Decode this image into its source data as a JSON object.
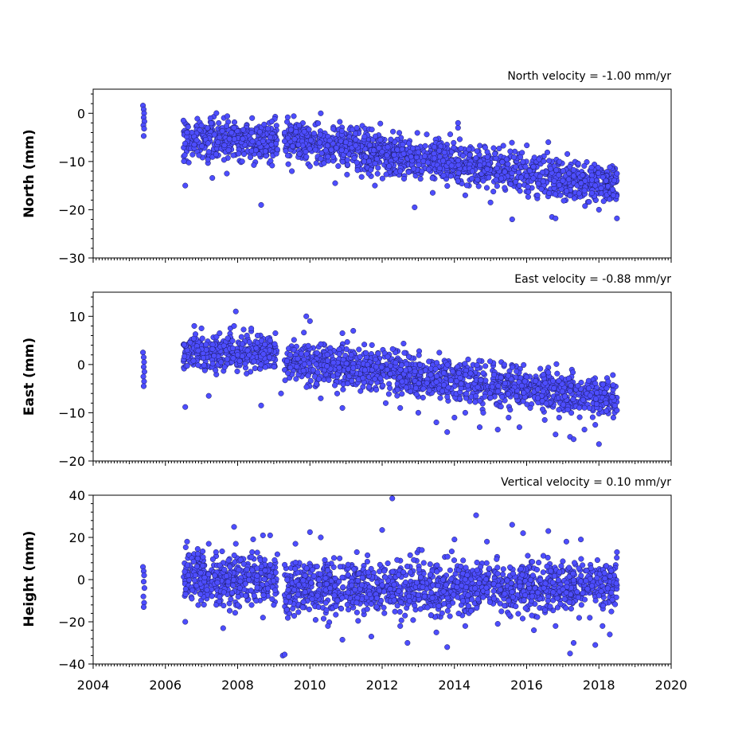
{
  "chart_data": [
    {
      "type": "scatter",
      "title": "North velocity = -1.00 mm/yr",
      "ylabel": "North (mm)",
      "xlim": [
        2004,
        2020
      ],
      "ylim": [
        -30,
        5
      ],
      "yticks": [
        0,
        -10,
        -20,
        -30
      ],
      "ytick_labels": [
        "0",
        "−10",
        "−20",
        "−30"
      ],
      "x_tick_labels_visible": false,
      "series": [
        {
          "points": [
            [
              2005.38,
              1.6
            ],
            [
              2005.4,
              0.8
            ],
            [
              2005.41,
              0.0
            ],
            [
              2005.4,
              -0.9
            ],
            [
              2005.42,
              -1.7
            ],
            [
              2005.39,
              -2.5
            ],
            [
              2005.41,
              -3.2
            ],
            [
              2005.4,
              -4.7
            ],
            [
              2006.5,
              -1.5
            ],
            [
              2006.55,
              -15.0
            ],
            [
              2006.6,
              -4.0
            ],
            [
              2006.8,
              -6.5
            ],
            [
              2007.0,
              -2.5
            ],
            [
              2007.2,
              -8.0
            ],
            [
              2007.3,
              -13.4
            ],
            [
              2007.5,
              -5.0
            ],
            [
              2007.7,
              -12.5
            ],
            [
              2007.9,
              -3.0
            ],
            [
              2008.4,
              -1.0
            ],
            [
              2008.6,
              -8.5
            ],
            [
              2008.65,
              -19.0
            ],
            [
              2008.9,
              -5.0
            ],
            [
              2009.1,
              -7.5
            ],
            [
              2009.3,
              -4.0
            ],
            [
              2009.5,
              -12.0
            ],
            [
              2009.7,
              -2.5
            ],
            [
              2010.0,
              -11.0
            ],
            [
              2010.3,
              0.0
            ],
            [
              2010.5,
              -9.0
            ],
            [
              2010.7,
              -14.5
            ],
            [
              2011.0,
              -6.0
            ],
            [
              2011.3,
              -3.0
            ],
            [
              2011.5,
              -10.0
            ],
            [
              2011.8,
              -15.0
            ],
            [
              2012.0,
              -8.0
            ],
            [
              2012.3,
              -3.8
            ],
            [
              2012.5,
              -12.0
            ],
            [
              2012.8,
              -9.0
            ],
            [
              2012.9,
              -19.5
            ],
            [
              2013.1,
              -12.0
            ],
            [
              2013.4,
              -16.5
            ],
            [
              2013.6,
              -9.0
            ],
            [
              2013.9,
              -13.0
            ],
            [
              2014.1,
              -2.0
            ],
            [
              2014.1,
              -3.0
            ],
            [
              2014.3,
              -17.0
            ],
            [
              2014.5,
              -12.0
            ],
            [
              2014.8,
              -14.0
            ],
            [
              2015.0,
              -18.5
            ],
            [
              2015.3,
              -13.5
            ],
            [
              2015.6,
              -22.0
            ],
            [
              2015.8,
              -15.0
            ],
            [
              2016.0,
              -13.0
            ],
            [
              2016.3,
              -17.0
            ],
            [
              2016.6,
              -6.0
            ],
            [
              2016.7,
              -21.5
            ],
            [
              2016.8,
              -21.8
            ],
            [
              2017.0,
              -14.0
            ],
            [
              2017.3,
              -13.0
            ],
            [
              2017.6,
              -16.0
            ],
            [
              2017.9,
              -15.0
            ],
            [
              2018.0,
              -20.0
            ],
            [
              2018.2,
              -14.0
            ],
            [
              2018.4,
              -17.0
            ],
            [
              2018.5,
              -21.8
            ],
            [
              2018.5,
              -12.5
            ]
          ],
          "trend_segments": [
            {
              "x": [
                2006.5,
                2009.1
              ],
              "y_center": -5.5,
              "spread": 3.0
            },
            {
              "x": [
                2009.3,
                2018.5
              ],
              "y_center_start": -5.5,
              "y_center_end": -15.0,
              "spread": 3.0
            }
          ]
        }
      ]
    },
    {
      "type": "scatter",
      "title": "East velocity = -0.88 mm/yr",
      "ylabel": "East (mm)",
      "xlim": [
        2004,
        2020
      ],
      "ylim": [
        -20,
        15
      ],
      "yticks": [
        10,
        0,
        -10,
        -20
      ],
      "ytick_labels": [
        "10",
        "0",
        "−10",
        "−20"
      ],
      "x_tick_labels_visible": false,
      "series": [
        {
          "points": [
            [
              2005.38,
              2.5
            ],
            [
              2005.4,
              1.5
            ],
            [
              2005.41,
              0.5
            ],
            [
              2005.4,
              -0.5
            ],
            [
              2005.42,
              -1.5
            ],
            [
              2005.39,
              -2.5
            ],
            [
              2005.41,
              -3.5
            ],
            [
              2005.4,
              -4.5
            ],
            [
              2006.55,
              -8.8
            ],
            [
              2006.8,
              8.0
            ],
            [
              2007.0,
              7.5
            ],
            [
              2007.2,
              -6.5
            ],
            [
              2007.5,
              6.5
            ],
            [
              2007.8,
              7.5
            ],
            [
              2007.95,
              11.0
            ],
            [
              2007.9,
              8.0
            ],
            [
              2008.55,
              6.0
            ],
            [
              2008.65,
              -8.5
            ],
            [
              2008.9,
              5.0
            ],
            [
              2009.2,
              -6.0
            ],
            [
              2009.9,
              10.0
            ],
            [
              2010.0,
              9.0
            ],
            [
              2010.3,
              -7.0
            ],
            [
              2010.9,
              6.5
            ],
            [
              2010.9,
              -9.0
            ],
            [
              2011.2,
              7.0
            ],
            [
              2011.4,
              -5.5
            ],
            [
              2011.8,
              -3.0
            ],
            [
              2012.1,
              -8.0
            ],
            [
              2012.5,
              -9.0
            ],
            [
              2013.0,
              -10.0
            ],
            [
              2013.5,
              -12.0
            ],
            [
              2013.8,
              -14.0
            ],
            [
              2014.0,
              -11.0
            ],
            [
              2014.3,
              -10.0
            ],
            [
              2014.7,
              -13.0
            ],
            [
              2014.8,
              -10.0
            ],
            [
              2015.2,
              -13.5
            ],
            [
              2015.5,
              -11.0
            ],
            [
              2015.8,
              -13.0
            ],
            [
              2016.1,
              -9.0
            ],
            [
              2016.5,
              -11.5
            ],
            [
              2016.8,
              -14.5
            ],
            [
              2016.9,
              -11.0
            ],
            [
              2017.2,
              -15.0
            ],
            [
              2017.3,
              -15.5
            ],
            [
              2017.6,
              -13.5
            ],
            [
              2017.9,
              -12.5
            ],
            [
              2018.0,
              -16.5
            ],
            [
              2018.2,
              -8.0
            ],
            [
              2018.4,
              -11.0
            ],
            [
              2018.5,
              -9.5
            ]
          ],
          "trend_segments": [
            {
              "x": [
                2006.5,
                2009.1
              ],
              "y_center": 2.5,
              "spread": 2.5
            },
            {
              "x": [
                2009.3,
                2018.5
              ],
              "y_center_start": 1.0,
              "y_center_end": -7.0,
              "spread": 3.0
            }
          ]
        }
      ]
    },
    {
      "type": "scatter",
      "title": "Vertical velocity = 0.10 mm/yr",
      "ylabel": "Height (mm)",
      "xlim": [
        2004,
        2020
      ],
      "ylim": [
        -40,
        40
      ],
      "yticks": [
        40,
        20,
        0,
        -20,
        -40
      ],
      "ytick_labels": [
        "40",
        "20",
        "0",
        "−20",
        "−40"
      ],
      "xticks": [
        2004,
        2006,
        2008,
        2010,
        2012,
        2014,
        2016,
        2018,
        2020
      ],
      "xtick_labels": [
        "2004",
        "2006",
        "2008",
        "2010",
        "2012",
        "2014",
        "2016",
        "2018",
        "2020"
      ],
      "x_tick_labels_visible": true,
      "series": [
        {
          "points": [
            [
              2005.38,
              6.0
            ],
            [
              2005.4,
              4.0
            ],
            [
              2005.41,
              2.0
            ],
            [
              2005.4,
              -1.0
            ],
            [
              2005.42,
              -4.0
            ],
            [
              2005.39,
              -8.0
            ],
            [
              2005.41,
              -11.0
            ],
            [
              2005.4,
              -13.0
            ],
            [
              2006.55,
              -20.0
            ],
            [
              2006.6,
              18.0
            ],
            [
              2007.2,
              17.0
            ],
            [
              2007.4,
              13.0
            ],
            [
              2007.6,
              -23.0
            ],
            [
              2007.9,
              25.0
            ],
            [
              2007.95,
              17.0
            ],
            [
              2008.0,
              -12.0
            ],
            [
              2008.4,
              13.0
            ],
            [
              2008.7,
              21.0
            ],
            [
              2008.9,
              21.0
            ],
            [
              2008.7,
              -18.0
            ],
            [
              2009.0,
              -12.0
            ],
            [
              2009.1,
              12.0
            ],
            [
              2009.25,
              -36.0
            ],
            [
              2009.3,
              -35.5
            ],
            [
              2009.6,
              17.0
            ],
            [
              2010.0,
              22.5
            ],
            [
              2010.3,
              20.0
            ],
            [
              2010.5,
              -22.0
            ],
            [
              2010.9,
              -28.5
            ],
            [
              2011.3,
              13.0
            ],
            [
              2011.7,
              -27.0
            ],
            [
              2012.0,
              23.5
            ],
            [
              2012.28,
              38.5
            ],
            [
              2012.5,
              -22.0
            ],
            [
              2012.7,
              -30.0
            ],
            [
              2013.1,
              14.0
            ],
            [
              2013.5,
              -25.0
            ],
            [
              2013.8,
              -32.0
            ],
            [
              2014.0,
              19.0
            ],
            [
              2014.3,
              -22.0
            ],
            [
              2014.6,
              30.5
            ],
            [
              2014.9,
              18.0
            ],
            [
              2015.2,
              -21.0
            ],
            [
              2015.6,
              26.0
            ],
            [
              2015.9,
              22.0
            ],
            [
              2016.2,
              -24.0
            ],
            [
              2016.6,
              23.0
            ],
            [
              2016.8,
              -22.0
            ],
            [
              2017.1,
              18.0
            ],
            [
              2017.2,
              -35.0
            ],
            [
              2017.3,
              -30.0
            ],
            [
              2017.5,
              19.0
            ],
            [
              2017.9,
              -31.0
            ],
            [
              2018.1,
              -22.0
            ],
            [
              2018.3,
              -26.0
            ],
            [
              2018.5,
              13.0
            ]
          ],
          "trend_segments": [
            {
              "x": [
                2006.5,
                2009.1
              ],
              "y_center": 0.0,
              "spread": 9.0
            },
            {
              "x": [
                2009.3,
                2018.5
              ],
              "y_center_start": -4.0,
              "y_center_end": -3.0,
              "spread": 9.0
            }
          ]
        }
      ]
    }
  ]
}
